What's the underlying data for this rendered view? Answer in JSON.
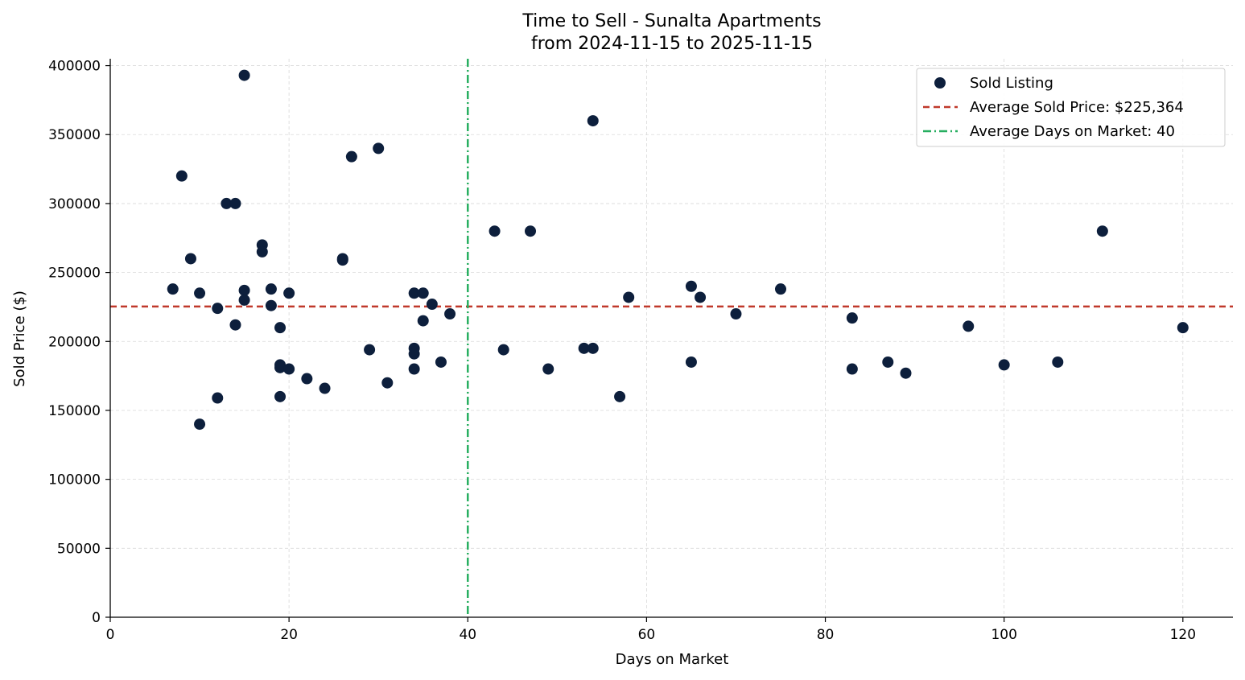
{
  "chart_data": {
    "type": "scatter",
    "title": "Time to Sell - Sunalta Apartments",
    "subtitle": "from 2024-11-15 to 2025-11-15",
    "xlabel": "Days on Market",
    "ylabel": "Sold Price ($)",
    "xlim": [
      0,
      125.6
    ],
    "ylim": [
      0,
      405000
    ],
    "xticks": [
      0,
      20,
      40,
      60,
      80,
      100,
      120
    ],
    "xtick_labels": [
      "0",
      "20",
      "40",
      "60",
      "80",
      "100",
      "120"
    ],
    "yticks": [
      0,
      50000,
      100000,
      150000,
      200000,
      250000,
      300000,
      350000,
      400000
    ],
    "ytick_labels": [
      "0",
      "50000",
      "100000",
      "150000",
      "200000",
      "250000",
      "300000",
      "350000",
      "400000"
    ],
    "grid": true,
    "legend_position": "top-right",
    "series": [
      {
        "name": "Sold Listing",
        "color": "#0d1f3c",
        "x": [
          7,
          8,
          9,
          10,
          10,
          12,
          12,
          13,
          14,
          14,
          15,
          15,
          15,
          17,
          17,
          18,
          18,
          19,
          19,
          19,
          19,
          20,
          20,
          22,
          24,
          26,
          26,
          27,
          29,
          30,
          31,
          34,
          34,
          34,
          34,
          35,
          35,
          36,
          37,
          38,
          43,
          44,
          47,
          49,
          53,
          54,
          54,
          57,
          58,
          65,
          65,
          66,
          70,
          75,
          83,
          83,
          87,
          89,
          96,
          100,
          106,
          111,
          120
        ],
        "y": [
          238000,
          320000,
          260000,
          235000,
          140000,
          224000,
          159000,
          300000,
          300000,
          212000,
          393000,
          237000,
          230000,
          270000,
          265000,
          238000,
          226000,
          210000,
          183000,
          181000,
          160000,
          235000,
          180000,
          173000,
          166000,
          260000,
          259000,
          334000,
          194000,
          340000,
          170000,
          235000,
          195000,
          191000,
          180000,
          235000,
          215000,
          227000,
          185000,
          220000,
          280000,
          194000,
          280000,
          180000,
          195000,
          360000,
          195000,
          160000,
          232000,
          240000,
          185000,
          232000,
          220000,
          238000,
          217000,
          180000,
          185000,
          177000,
          211000,
          183000,
          185000,
          280000,
          210000
        ]
      }
    ],
    "reference_lines": [
      {
        "name": "Average Sold Price: $225,364",
        "orientation": "horizontal",
        "value": 225364,
        "color": "#c0392b",
        "style": "dashed"
      },
      {
        "name": "Average Days on Market: 40",
        "orientation": "vertical",
        "value": 40,
        "color": "#27ae60",
        "style": "dashdot"
      }
    ]
  }
}
